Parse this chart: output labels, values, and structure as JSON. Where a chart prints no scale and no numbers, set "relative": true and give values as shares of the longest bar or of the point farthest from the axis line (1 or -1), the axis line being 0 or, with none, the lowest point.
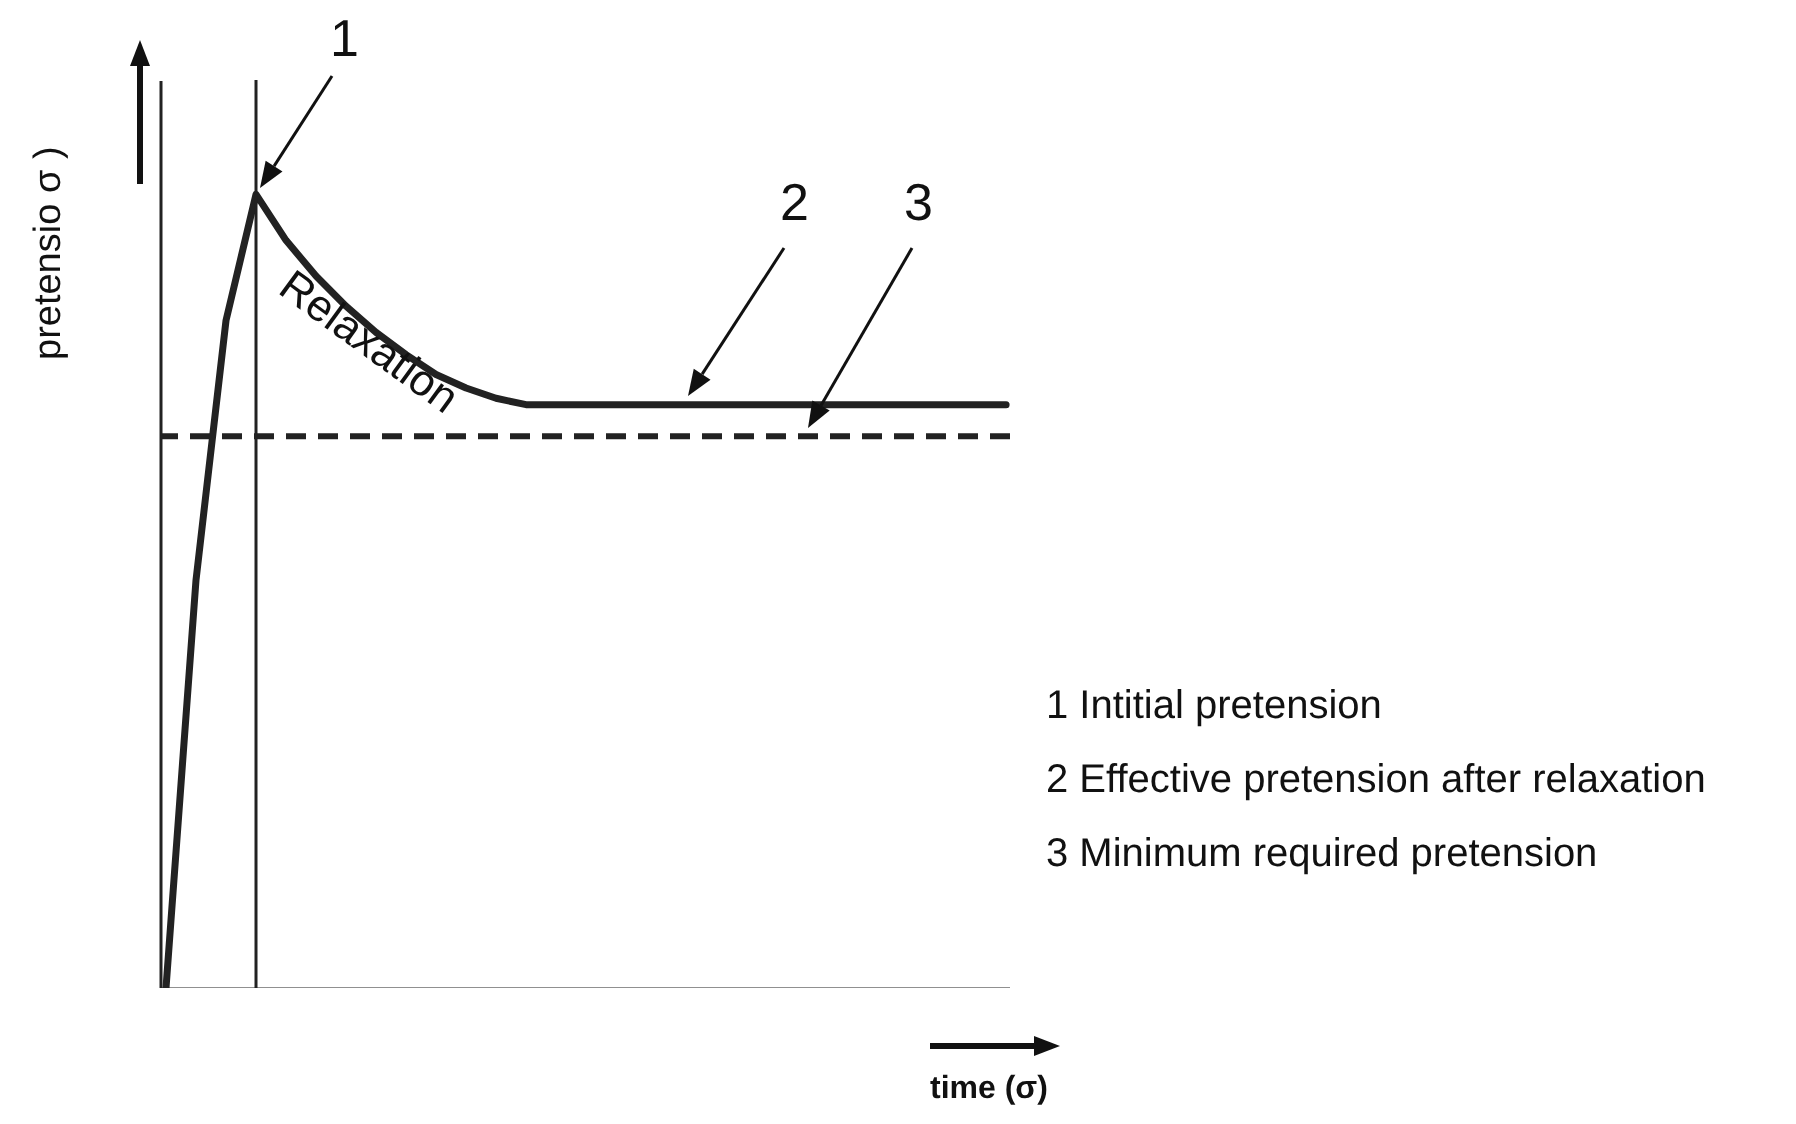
{
  "chart_data": {
    "type": "line",
    "relative": true,
    "xlabel": "time (σ)",
    "ylabel": "pretensio   σ )",
    "categories": [
      null,
      null,
      null,
      null,
      null,
      null,
      null,
      null,
      null,
      null,
      null,
      null,
      null,
      null,
      null,
      null,
      null,
      null,
      null,
      null,
      null,
      null,
      null,
      null,
      null,
      null,
      null,
      null,
      null
    ],
    "series": [
      {
        "color": "#222222",
        "values": [
          0,
          0.514,
          0.841,
          1,
          0.942,
          0.897,
          0.859,
          0.826,
          0.798,
          0.773,
          0.756,
          0.743,
          0.735,
          0.735,
          0.735,
          0.735,
          0.735,
          0.735,
          0.735,
          0.735,
          0.735,
          0.735,
          0.735,
          0.735,
          0.735,
          0.735,
          0.735,
          0.735,
          0.735
        ]
      }
    ],
    "ref_lines": [
      {
        "axis": "y",
        "value": 0.695,
        "color": "#222222",
        "line_style": "dashed"
      }
    ],
    "annotations": [
      "1",
      "2",
      "3",
      "Relaxation",
      "1 Intitial pretension",
      "2 Effective pretension after relaxation",
      "3 Minimum required pretension"
    ],
    "marker": "none",
    "line_style": "solid",
    "grid": false
  }
}
